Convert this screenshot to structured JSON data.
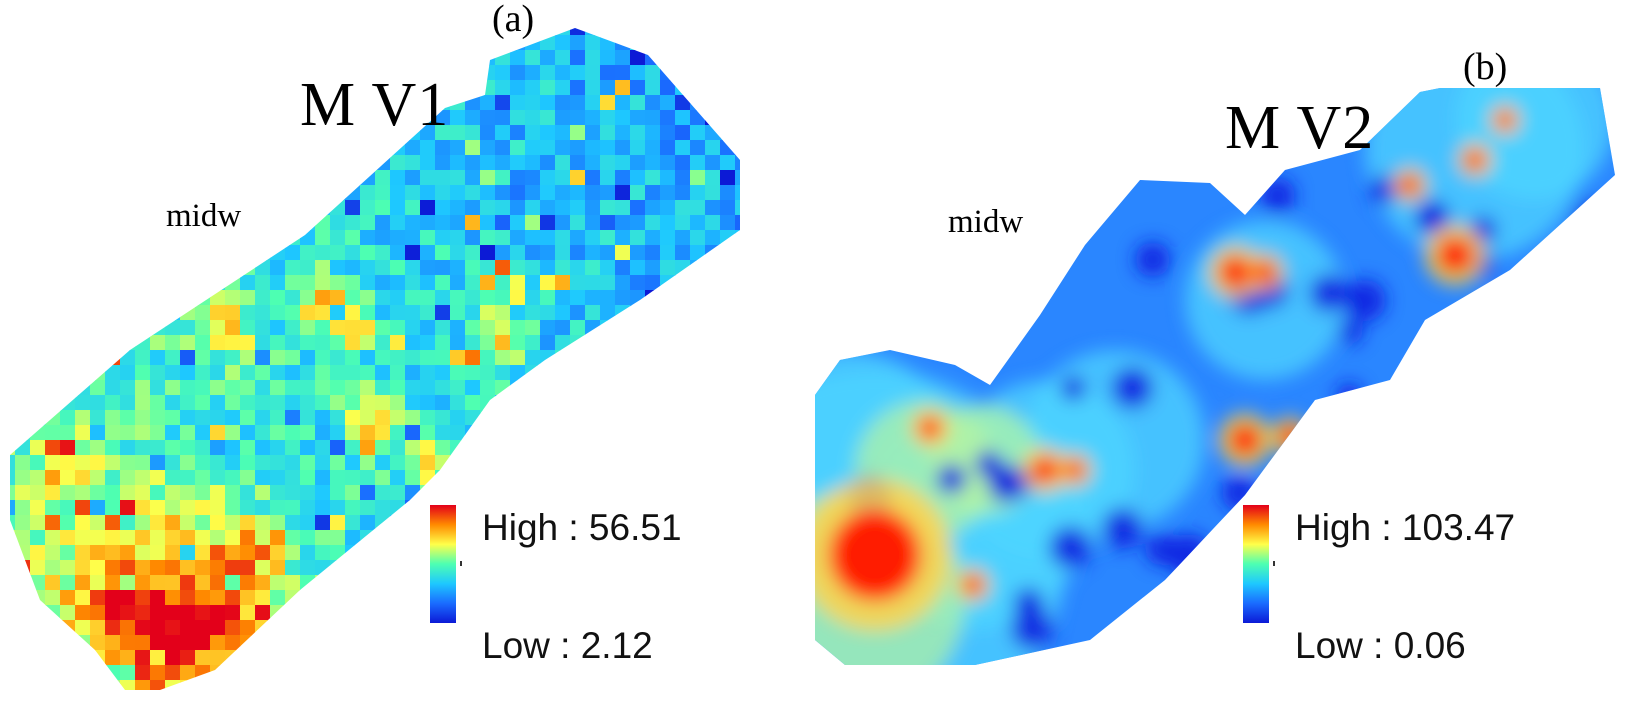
{
  "panels": [
    {
      "letter": "(a)",
      "title": "M V1",
      "region_label": "midw",
      "legend": {
        "high": "High : 56.51",
        "low": "Low : 2.12"
      },
      "style": "pixelated"
    },
    {
      "letter": "(b)",
      "title": "M V2",
      "region_label": "midw",
      "legend": {
        "high": "High : 103.47",
        "low": "Low : 0.06"
      },
      "style": "smooth"
    }
  ],
  "colors": {
    "ramp": [
      "#e3001a",
      "#ff8a00",
      "#ffff4a",
      "#4dffb2",
      "#1ec8ff",
      "#1a6cff",
      "#0c1ad6"
    ],
    "panel_a_base": "#5fe0f0",
    "panel_b_base": "#2a86ff",
    "hot": "#ff1a00"
  }
}
